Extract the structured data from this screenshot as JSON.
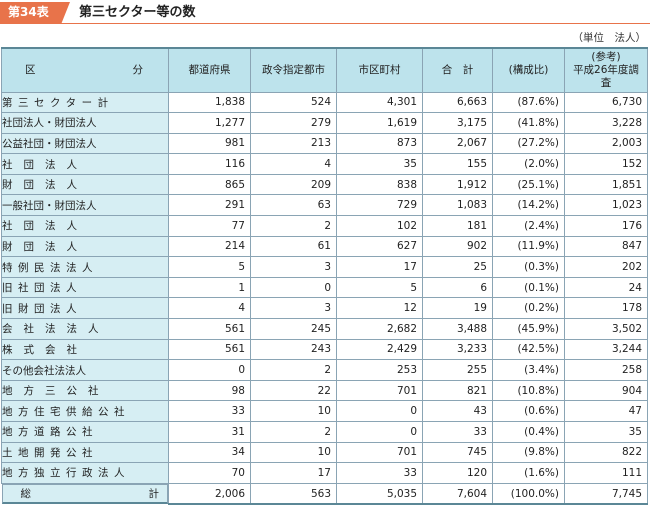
{
  "header": {
    "badge": "第34表",
    "title": "第三セクター等の数",
    "unit": "（単位　法人）"
  },
  "table": {
    "columns": {
      "category_left": "区",
      "category_right": "分",
      "prefecture": "都道府県",
      "designated_city": "政令指定都市",
      "municipality": "市区町村",
      "total": "合　計",
      "ratio": "(構成比)",
      "reference_line1": "(参考)",
      "reference_line2": "平成26年度調査"
    },
    "rows": [
      {
        "label": "第三セクター計",
        "indent": 0,
        "spacing": 1,
        "prefecture": "1,838",
        "designated_city": "524",
        "municipality": "4,301",
        "total": "6,663",
        "ratio": "(87.6%)",
        "reference": "6,730"
      },
      {
        "label": "社団法人・財団法人",
        "indent": 1,
        "spacing": 0,
        "prefecture": "1,277",
        "designated_city": "279",
        "municipality": "1,619",
        "total": "3,175",
        "ratio": "(41.8%)",
        "reference": "3,228"
      },
      {
        "label": "公益社団・財団法人",
        "indent": 2,
        "spacing": 0,
        "prefecture": "981",
        "designated_city": "213",
        "municipality": "873",
        "total": "2,067",
        "ratio": "(27.2%)",
        "reference": "2,003"
      },
      {
        "label": "社団法人",
        "indent": 3,
        "spacing": 2,
        "prefecture": "116",
        "designated_city": "4",
        "municipality": "35",
        "total": "155",
        "ratio": "(2.0%)",
        "reference": "152"
      },
      {
        "label": "財団法人",
        "indent": 3,
        "spacing": 2,
        "prefecture": "865",
        "designated_city": "209",
        "municipality": "838",
        "total": "1,912",
        "ratio": "(25.1%)",
        "reference": "1,851"
      },
      {
        "label": "一般社団・財団法人",
        "indent": 2,
        "spacing": 0,
        "prefecture": "291",
        "designated_city": "63",
        "municipality": "729",
        "total": "1,083",
        "ratio": "(14.2%)",
        "reference": "1,023"
      },
      {
        "label": "社団法人",
        "indent": 3,
        "spacing": 2,
        "prefecture": "77",
        "designated_city": "2",
        "municipality": "102",
        "total": "181",
        "ratio": "(2.4%)",
        "reference": "176"
      },
      {
        "label": "財団法人",
        "indent": 3,
        "spacing": 2,
        "prefecture": "214",
        "designated_city": "61",
        "municipality": "627",
        "total": "902",
        "ratio": "(11.9%)",
        "reference": "847"
      },
      {
        "label": "特例民法法人",
        "indent": 2,
        "spacing": 1,
        "prefecture": "5",
        "designated_city": "3",
        "municipality": "17",
        "total": "25",
        "ratio": "(0.3%)",
        "reference": "202"
      },
      {
        "label": "旧社団法人",
        "indent": 3,
        "spacing": 1,
        "prefecture": "1",
        "designated_city": "0",
        "municipality": "5",
        "total": "6",
        "ratio": "(0.1%)",
        "reference": "24"
      },
      {
        "label": "旧財団法人",
        "indent": 3,
        "spacing": 1,
        "prefecture": "4",
        "designated_city": "3",
        "municipality": "12",
        "total": "19",
        "ratio": "(0.2%)",
        "reference": "178"
      },
      {
        "label": "会社法法人",
        "indent": 1,
        "spacing": 2,
        "prefecture": "561",
        "designated_city": "245",
        "municipality": "2,682",
        "total": "3,488",
        "ratio": "(45.9%)",
        "reference": "3,502"
      },
      {
        "label": "株式会社",
        "indent": 2,
        "spacing": 2,
        "prefecture": "561",
        "designated_city": "243",
        "municipality": "2,429",
        "total": "3,233",
        "ratio": "(42.5%)",
        "reference": "3,244"
      },
      {
        "label": "その他会社法法人",
        "indent": 2,
        "spacing": 0,
        "prefecture": "0",
        "designated_city": "2",
        "municipality": "253",
        "total": "255",
        "ratio": "(3.4%)",
        "reference": "258"
      },
      {
        "label": "地方三公社",
        "indent": 0,
        "spacing": 2,
        "prefecture": "98",
        "designated_city": "22",
        "municipality": "701",
        "total": "821",
        "ratio": "(10.8%)",
        "reference": "904"
      },
      {
        "label": "地方住宅供給公社",
        "indent": 1,
        "spacing": 1,
        "prefecture": "33",
        "designated_city": "10",
        "municipality": "0",
        "total": "43",
        "ratio": "(0.6%)",
        "reference": "47"
      },
      {
        "label": "地方道路公社",
        "indent": 1,
        "spacing": 1,
        "prefecture": "31",
        "designated_city": "2",
        "municipality": "0",
        "total": "33",
        "ratio": "(0.4%)",
        "reference": "35"
      },
      {
        "label": "土地開発公社",
        "indent": 1,
        "spacing": 1,
        "prefecture": "34",
        "designated_city": "10",
        "municipality": "701",
        "total": "745",
        "ratio": "(9.8%)",
        "reference": "822"
      },
      {
        "label": "地方独立行政法人",
        "indent": 0,
        "spacing": 1,
        "prefecture": "70",
        "designated_city": "17",
        "municipality": "33",
        "total": "120",
        "ratio": "(1.6%)",
        "reference": "111"
      },
      {
        "label": "総　計",
        "indent": 0,
        "spacing": 0,
        "prefecture": "2,006",
        "designated_city": "563",
        "municipality": "5,035",
        "total": "7,604",
        "ratio": "(100.0%)",
        "reference": "7,745"
      }
    ]
  }
}
